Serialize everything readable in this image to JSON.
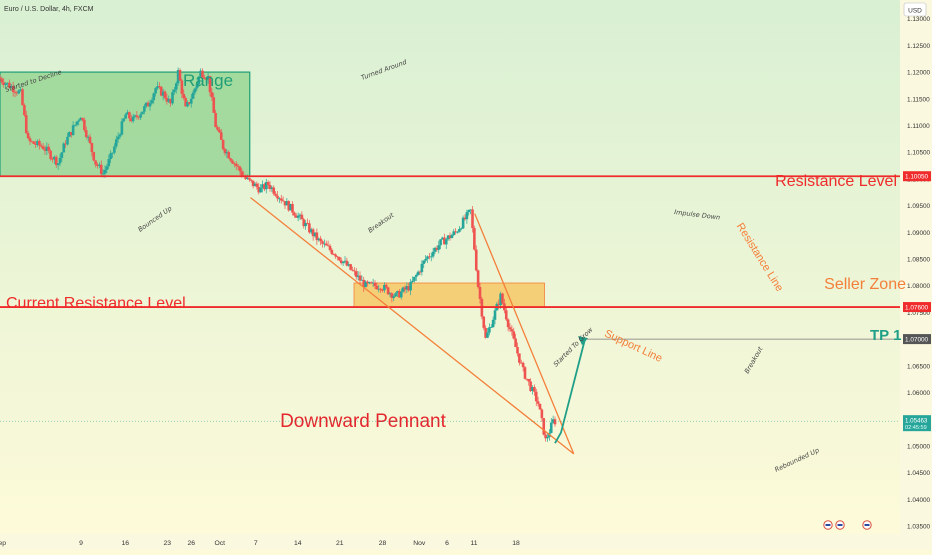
{
  "header": {
    "symbol_title": "Euro / U.S. Dollar, 4h, FXCM",
    "currency_button": "USD"
  },
  "colors": {
    "background_top": "#d9f0d3",
    "background_bottom": "#fdfad9",
    "range_fill": "#8fd18c",
    "range_border": "#1f9e77",
    "resistance_line": "#ef2b2b",
    "seller_zone_fill": "#f6c867",
    "pennant_line": "#f47f3a",
    "candle_up": "#26a69a",
    "candle_down": "#ef5350",
    "tp_color": "#1f9e88",
    "axis_text": "#333333"
  },
  "chart_data": {
    "type": "candlestick",
    "timeframe": "4h",
    "y_axis": {
      "min": 1.0335,
      "max": 1.1335,
      "ticks": [
        1.035,
        1.04,
        1.045,
        1.05,
        1.055,
        1.06,
        1.065,
        1.07,
        1.075,
        1.08,
        1.085,
        1.09,
        1.095,
        1.1,
        1.105,
        1.11,
        1.115,
        1.12,
        1.125,
        1.13
      ],
      "tick_labels": [
        "1.03500",
        "1.04000",
        "1.04500",
        "1.05000",
        "1.05500",
        "1.06000",
        "1.06500",
        "1.07000",
        "1.07500",
        "1.08000",
        "1.08500",
        "1.09000",
        "1.09500",
        "1.10000",
        "1.10500",
        "1.11000",
        "1.11500",
        "1.12000",
        "1.12500",
        "1.13000"
      ]
    },
    "x_axis": {
      "bar_range": [
        0,
        120
      ],
      "ticks": [
        {
          "bar": 0.0,
          "label": "Sep"
        },
        {
          "bar": 10.8,
          "label": "9"
        },
        {
          "bar": 16.7,
          "label": "16"
        },
        {
          "bar": 22.3,
          "label": "23"
        },
        {
          "bar": 25.5,
          "label": "26"
        },
        {
          "bar": 29.3,
          "label": "Oct"
        },
        {
          "bar": 34.1,
          "label": "7"
        },
        {
          "bar": 39.7,
          "label": "14"
        },
        {
          "bar": 45.3,
          "label": "21"
        },
        {
          "bar": 51.0,
          "label": "28"
        },
        {
          "bar": 55.9,
          "label": "Nov"
        },
        {
          "bar": 59.6,
          "label": "6"
        },
        {
          "bar": 63.2,
          "label": "11"
        },
        {
          "bar": 68.8,
          "label": "18"
        }
      ]
    },
    "waypoints": [
      [
        0,
        1.119
      ],
      [
        3,
        1.116
      ],
      [
        4,
        1.107
      ],
      [
        6,
        1.106
      ],
      [
        8,
        1.103
      ],
      [
        9,
        1.107
      ],
      [
        11,
        1.112
      ],
      [
        13,
        1.103
      ],
      [
        14,
        1.101
      ],
      [
        15,
        1.104
      ],
      [
        17,
        1.112
      ],
      [
        18,
        1.111
      ],
      [
        20,
        1.114
      ],
      [
        21,
        1.117
      ],
      [
        22,
        1.116
      ],
      [
        23,
        1.114
      ],
      [
        24,
        1.12
      ],
      [
        25,
        1.113
      ],
      [
        26,
        1.116
      ],
      [
        27,
        1.12
      ],
      [
        28,
        1.119
      ],
      [
        29,
        1.11
      ],
      [
        30,
        1.106
      ],
      [
        32,
        1.102
      ],
      [
        33,
        1.1
      ],
      [
        35,
        1.098
      ],
      [
        36,
        1.099
      ],
      [
        38,
        1.096
      ],
      [
        40,
        1.093
      ],
      [
        43,
        1.088
      ],
      [
        45,
        1.086
      ],
      [
        47,
        1.083
      ],
      [
        49,
        1.08
      ],
      [
        51,
        1.08
      ],
      [
        53,
        1.078
      ],
      [
        55,
        1.08
      ],
      [
        57,
        1.085
      ],
      [
        59,
        1.088
      ],
      [
        61,
        1.09
      ],
      [
        63,
        1.094
      ],
      [
        64,
        1.08
      ],
      [
        65,
        1.07
      ],
      [
        66,
        1.074
      ],
      [
        67,
        1.078
      ],
      [
        68,
        1.073
      ],
      [
        70,
        1.064
      ],
      [
        72,
        1.058
      ],
      [
        73,
        1.051
      ],
      [
        74,
        1.0546
      ]
    ],
    "series": [
      {
        "name": "Projection",
        "type": "arrow",
        "points": [
          {
            "bar": 74.0,
            "price": 1.0505
          },
          {
            "bar": 78.0,
            "price": 1.07
          }
        ]
      }
    ],
    "last_price": 1.05463,
    "annotations": [
      {
        "text": "Range",
        "kind": "title"
      },
      {
        "text": "Resistance Level",
        "kind": "level",
        "price": 1.1005,
        "price_label": "1.10050"
      },
      {
        "text": "Current Resistance Level",
        "kind": "level",
        "price": 1.076,
        "price_label": "1.07600"
      },
      {
        "text": "Seller Zone",
        "kind": "zone",
        "from": 1.076,
        "to": 1.0805
      },
      {
        "text": "TP 1",
        "kind": "target",
        "price": 1.07,
        "price_label": "1.07000"
      },
      {
        "text": "Downward Pennant",
        "kind": "title"
      },
      {
        "text": "Support Line",
        "kind": "trendline"
      },
      {
        "text": "Resistance Line",
        "kind": "trendline"
      },
      {
        "text": "Started to Decline",
        "kind": "note"
      },
      {
        "text": "Turned Around",
        "kind": "note"
      },
      {
        "text": "Bounced Up",
        "kind": "note"
      },
      {
        "text": "Breakout",
        "kind": "note"
      },
      {
        "text": "Impulse Down",
        "kind": "note"
      },
      {
        "text": "Started To Grow",
        "kind": "note"
      },
      {
        "text": "Breakout",
        "kind": "note"
      },
      {
        "text": "Rebounded Up",
        "kind": "note"
      }
    ],
    "badges": {
      "last_price_label": "1.05463",
      "countdown": "02:45:59"
    },
    "grid": false
  }
}
